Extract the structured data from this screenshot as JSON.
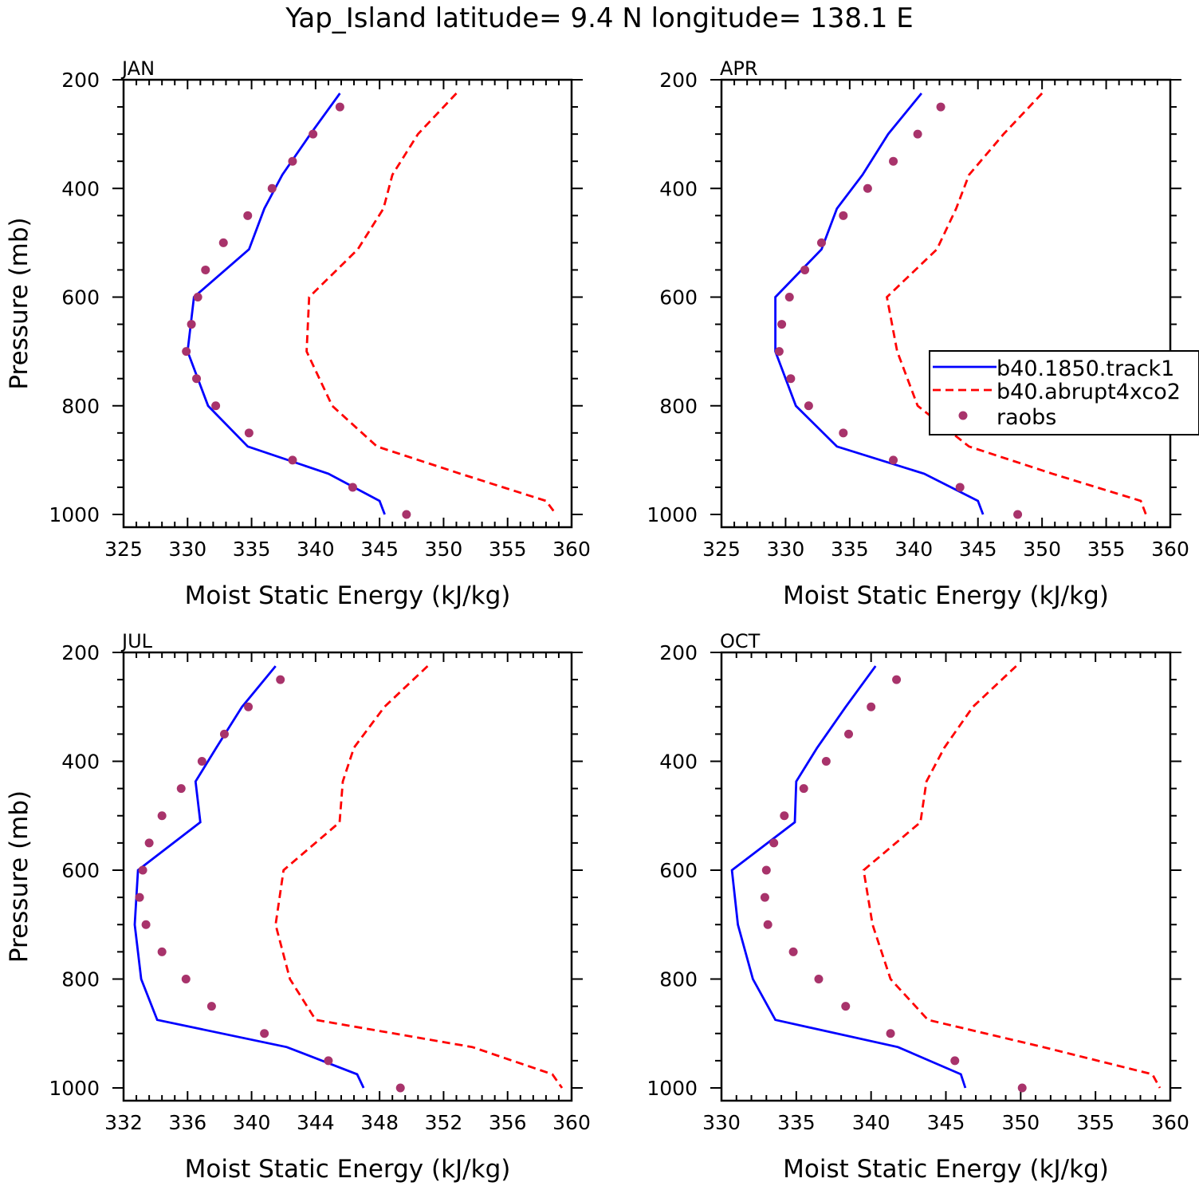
{
  "title": "Yap_Island  latitude= 9.4 N longitude= 138.1 E",
  "colors": {
    "track1": "#0000ff",
    "abrupt4xco2": "#ff0000",
    "raobs": "#a8336b",
    "axis": "#000000"
  },
  "legend": {
    "items": [
      {
        "label": "b40.1850.track1",
        "style": "solid",
        "color": "#0000ff"
      },
      {
        "label": "b40.abrupt4xco2",
        "style": "dashed",
        "color": "#ff0000"
      },
      {
        "label": "raobs",
        "style": "marker",
        "color": "#a8336b"
      }
    ]
  },
  "chart_data": [
    {
      "type": "line",
      "panel": "JAN",
      "xlabel": "Moist Static Energy (kJ/kg)",
      "ylabel": "Pressure (mb)",
      "xlim": [
        325,
        360
      ],
      "ylim": [
        200,
        1000
      ],
      "x_ticks": [
        325,
        330,
        335,
        340,
        345,
        350,
        355,
        360
      ],
      "x_ticks_labels": [
        "325",
        "330",
        "335",
        "340",
        "345",
        "350",
        "355",
        "360"
      ],
      "y_ticks": [
        200,
        400,
        600,
        800,
        1000
      ],
      "y_ticks_labels": [
        "200",
        "400",
        "600",
        "800",
        "1000"
      ],
      "series": [
        {
          "name": "b40.1850.track1",
          "style": "solid",
          "pressure": [
            225,
            300,
            375,
            437,
            512,
            600,
            700,
            800,
            875,
            925,
            975,
            1000
          ],
          "values": [
            341.9,
            339.6,
            337.4,
            336.0,
            334.8,
            330.5,
            330.0,
            331.6,
            334.7,
            341.0,
            345.0,
            345.4
          ]
        },
        {
          "name": "b40.abrupt4xco2",
          "style": "dashed",
          "pressure": [
            225,
            300,
            375,
            437,
            512,
            600,
            700,
            800,
            875,
            925,
            975,
            1000
          ],
          "values": [
            351.0,
            348.0,
            346.0,
            345.3,
            343.3,
            339.5,
            339.3,
            341.3,
            344.8,
            351.3,
            358.0,
            358.8
          ]
        },
        {
          "name": "raobs",
          "style": "marker",
          "pressure": [
            250,
            300,
            350,
            400,
            450,
            500,
            550,
            600,
            650,
            700,
            750,
            800,
            850,
            900,
            950,
            1000
          ],
          "values": [
            341.9,
            339.8,
            338.2,
            336.6,
            334.7,
            332.8,
            331.4,
            330.8,
            330.3,
            329.9,
            330.7,
            332.2,
            334.8,
            338.2,
            342.9,
            347.1
          ]
        }
      ]
    },
    {
      "type": "line",
      "panel": "APR",
      "xlabel": "Moist Static Energy (kJ/kg)",
      "ylabel": "",
      "xlim": [
        325,
        360
      ],
      "ylim": [
        200,
        1000
      ],
      "x_ticks": [
        325,
        330,
        335,
        340,
        345,
        350,
        355,
        360
      ],
      "x_ticks_labels": [
        "325",
        "330",
        "335",
        "340",
        "345",
        "350",
        "355",
        "360"
      ],
      "y_ticks": [
        200,
        400,
        600,
        800,
        1000
      ],
      "y_ticks_labels": [
        "200",
        "400",
        "600",
        "800",
        "1000"
      ],
      "series": [
        {
          "name": "b40.1850.track1",
          "style": "solid",
          "pressure": [
            225,
            300,
            375,
            437,
            512,
            600,
            700,
            800,
            875,
            925,
            975,
            1000
          ],
          "values": [
            340.6,
            338.0,
            336.0,
            334.0,
            332.8,
            329.2,
            329.2,
            330.8,
            334.0,
            340.8,
            345.0,
            345.4
          ]
        },
        {
          "name": "b40.abrupt4xco2",
          "style": "dashed",
          "pressure": [
            225,
            300,
            375,
            437,
            512,
            600,
            700,
            800,
            875,
            925,
            975,
            1000
          ],
          "values": [
            350.0,
            347.0,
            344.3,
            343.3,
            341.8,
            337.9,
            338.7,
            340.3,
            344.3,
            350.8,
            357.7,
            358.1
          ]
        },
        {
          "name": "raobs",
          "style": "marker",
          "pressure": [
            250,
            300,
            350,
            400,
            450,
            500,
            550,
            600,
            650,
            700,
            750,
            800,
            850,
            900,
            950,
            1000
          ],
          "values": [
            342.1,
            340.3,
            338.4,
            336.4,
            334.5,
            332.8,
            331.5,
            330.3,
            329.7,
            329.5,
            330.4,
            331.8,
            334.5,
            338.4,
            343.6,
            348.1
          ]
        }
      ]
    },
    {
      "type": "line",
      "panel": "JUL",
      "xlabel": "Moist Static Energy (kJ/kg)",
      "ylabel": "Pressure (mb)",
      "xlim": [
        332,
        360
      ],
      "ylim": [
        200,
        1000
      ],
      "x_ticks": [
        332,
        336,
        340,
        344,
        348,
        352,
        356,
        360
      ],
      "x_ticks_labels": [
        "332",
        "336",
        "340",
        "344",
        "348",
        "352",
        "356",
        "360"
      ],
      "y_ticks": [
        200,
        400,
        600,
        800,
        1000
      ],
      "y_ticks_labels": [
        "200",
        "400",
        "600",
        "800",
        "1000"
      ],
      "series": [
        {
          "name": "b40.1850.track1",
          "style": "solid",
          "pressure": [
            225,
            300,
            375,
            437,
            512,
            600,
            700,
            800,
            875,
            925,
            975,
            1000
          ],
          "values": [
            341.5,
            339.4,
            337.8,
            336.5,
            336.8,
            332.9,
            332.7,
            333.1,
            334.1,
            342.2,
            346.6,
            347.0
          ]
        },
        {
          "name": "b40.abrupt4xco2",
          "style": "dashed",
          "pressure": [
            225,
            300,
            375,
            437,
            512,
            600,
            700,
            800,
            875,
            925,
            975,
            1000
          ],
          "values": [
            351.0,
            348.3,
            346.4,
            345.7,
            345.5,
            342.0,
            341.5,
            342.4,
            344.0,
            353.8,
            358.8,
            359.4
          ]
        },
        {
          "name": "raobs",
          "style": "marker",
          "pressure": [
            250,
            300,
            350,
            400,
            450,
            500,
            550,
            600,
            650,
            700,
            750,
            800,
            850,
            900,
            950,
            1000
          ],
          "values": [
            341.8,
            339.8,
            338.3,
            336.9,
            335.6,
            334.4,
            333.6,
            333.2,
            333.0,
            333.4,
            334.4,
            335.9,
            337.5,
            340.8,
            344.8,
            349.3
          ]
        }
      ]
    },
    {
      "type": "line",
      "panel": "OCT",
      "xlabel": "Moist Static Energy (kJ/kg)",
      "ylabel": "",
      "xlim": [
        330,
        360
      ],
      "ylim": [
        200,
        1000
      ],
      "x_ticks": [
        330,
        335,
        340,
        345,
        350,
        355,
        360
      ],
      "x_ticks_labels": [
        "330",
        "335",
        "340",
        "345",
        "350",
        "355",
        "360"
      ],
      "y_ticks": [
        200,
        400,
        600,
        800,
        1000
      ],
      "y_ticks_labels": [
        "200",
        "400",
        "600",
        "800",
        "1000"
      ],
      "series": [
        {
          "name": "b40.1850.track1",
          "style": "solid",
          "pressure": [
            225,
            300,
            375,
            437,
            512,
            600,
            700,
            800,
            875,
            925,
            975,
            1000
          ],
          "values": [
            340.3,
            338.3,
            336.4,
            335.0,
            334.9,
            330.7,
            331.1,
            332.1,
            333.6,
            341.8,
            346.0,
            346.3
          ]
        },
        {
          "name": "b40.abrupt4xco2",
          "style": "dashed",
          "pressure": [
            225,
            300,
            375,
            437,
            512,
            600,
            700,
            800,
            875,
            925,
            975,
            1000
          ],
          "values": [
            349.7,
            346.8,
            344.9,
            343.7,
            343.3,
            339.5,
            340.1,
            341.3,
            343.8,
            351.5,
            358.8,
            359.3
          ]
        },
        {
          "name": "raobs",
          "style": "marker",
          "pressure": [
            250,
            300,
            350,
            400,
            450,
            500,
            550,
            600,
            650,
            700,
            750,
            800,
            850,
            900,
            950,
            1000
          ],
          "values": [
            341.7,
            340.0,
            338.5,
            337.0,
            335.5,
            334.2,
            333.5,
            333.0,
            332.9,
            333.1,
            334.8,
            336.5,
            338.3,
            341.3,
            345.6,
            350.1
          ]
        }
      ]
    }
  ]
}
